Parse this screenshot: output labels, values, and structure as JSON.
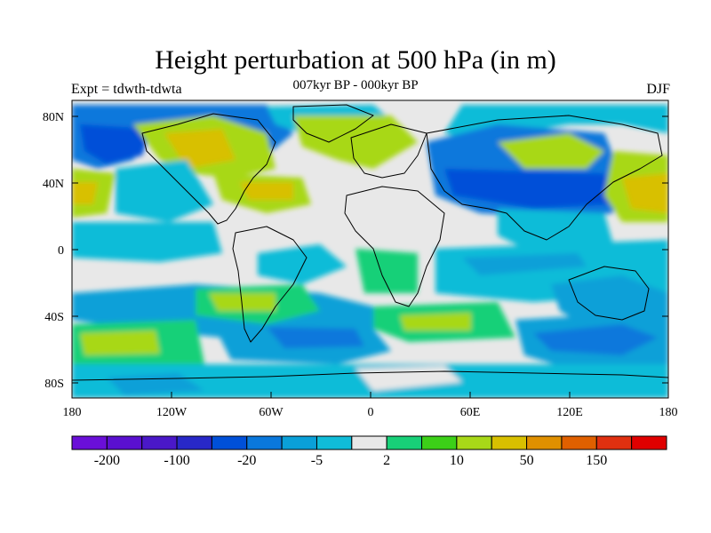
{
  "title": "Height perturbation at 500 hPa (in m)",
  "left_string": "Expt = tdwth-tdwta",
  "center_string": "007kyr BP - 000kyr BP",
  "right_string": "DJF",
  "axes": {
    "lat_ticks": [
      "80N",
      "40N",
      "0",
      "40S",
      "80S"
    ],
    "lon_ticks": [
      "180",
      "120W",
      "60W",
      "0",
      "60E",
      "120E",
      "180"
    ]
  },
  "colorbar": {
    "colors": [
      "#6a0fd8",
      "#5a10d0",
      "#4a18c8",
      "#2828c8",
      "#0050d8",
      "#0a78dc",
      "#0aa0d8",
      "#10bcd8",
      "#e8e8e8",
      "#18d078",
      "#3cd018",
      "#a8d818",
      "#d8c000",
      "#e09000",
      "#e06000",
      "#e03010",
      "#e00000"
    ],
    "labels": [
      "-200",
      "-100",
      "-20",
      "-5",
      "2",
      "10",
      "50",
      "150"
    ]
  }
}
